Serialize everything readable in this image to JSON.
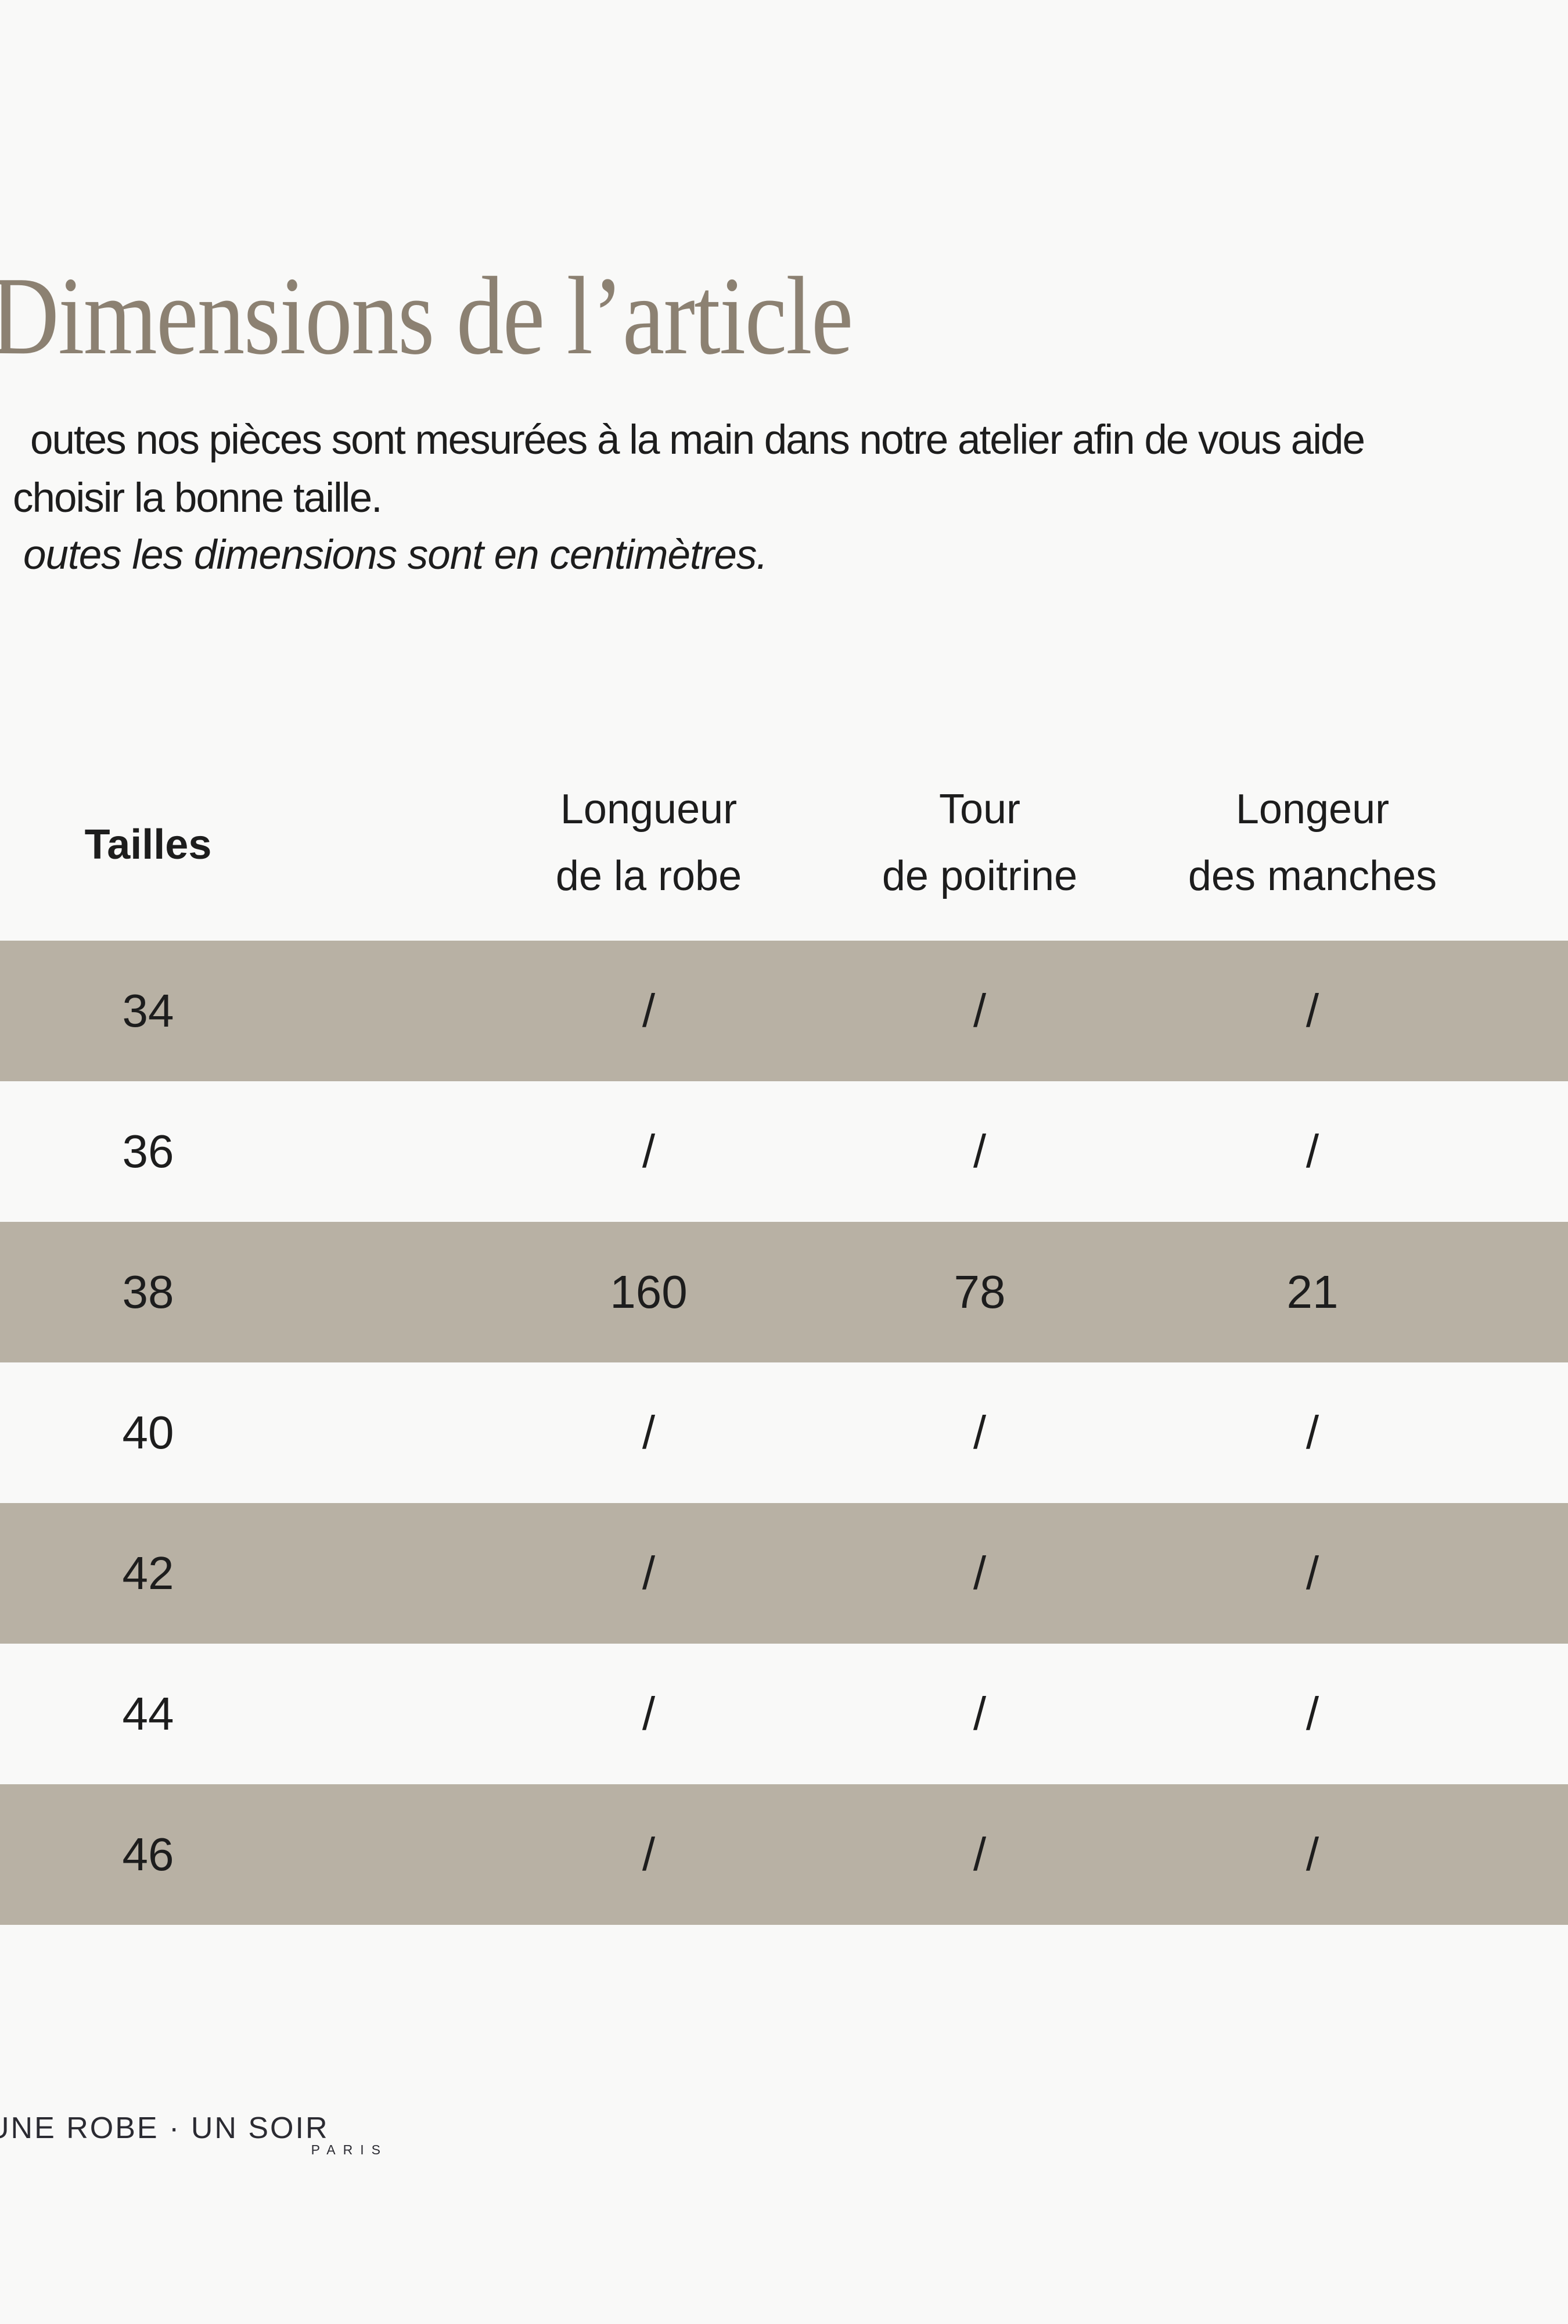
{
  "page": {
    "title": "Dimensions de l’article",
    "intro_line_1": "outes nos pièces sont mesurées à la main dans notre atelier afin de vous aide",
    "intro_line_2": "choisir la bonne taille.",
    "note_italic": "outes les dimensions sont en centimètres."
  },
  "table": {
    "headers": {
      "sizes": "Tailles",
      "dress_length_l1": "Longueur",
      "dress_length_l2": "de la robe",
      "chest_l1": "Tour",
      "chest_l2": "de poitrine",
      "sleeves_l1": "Longeur",
      "sleeves_l2": "des manches"
    },
    "rows": [
      {
        "size": "34",
        "values": [
          "/",
          "/",
          "/"
        ],
        "shaded": true
      },
      {
        "size": "36",
        "values": [
          "/",
          "/",
          "/"
        ],
        "shaded": false
      },
      {
        "size": "38",
        "values": [
          "160",
          "78",
          "21"
        ],
        "shaded": true
      },
      {
        "size": "40",
        "values": [
          "/",
          "/",
          "/"
        ],
        "shaded": false
      },
      {
        "size": "42",
        "values": [
          "/",
          "/",
          "/"
        ],
        "shaded": true
      },
      {
        "size": "44",
        "values": [
          "/",
          "/",
          "/"
        ],
        "shaded": false
      },
      {
        "size": "46",
        "values": [
          "/",
          "/",
          "/"
        ],
        "shaded": true
      }
    ]
  },
  "footer": {
    "brand": "UNE ROBE · UN SOIR",
    "brand_city": "PARIS"
  },
  "colors": {
    "background": "#f9f9f8",
    "row_shaded": "#b8b1a4",
    "title": "#8c8172",
    "text": "#1d1d1d",
    "logo": "#2b2b32"
  }
}
